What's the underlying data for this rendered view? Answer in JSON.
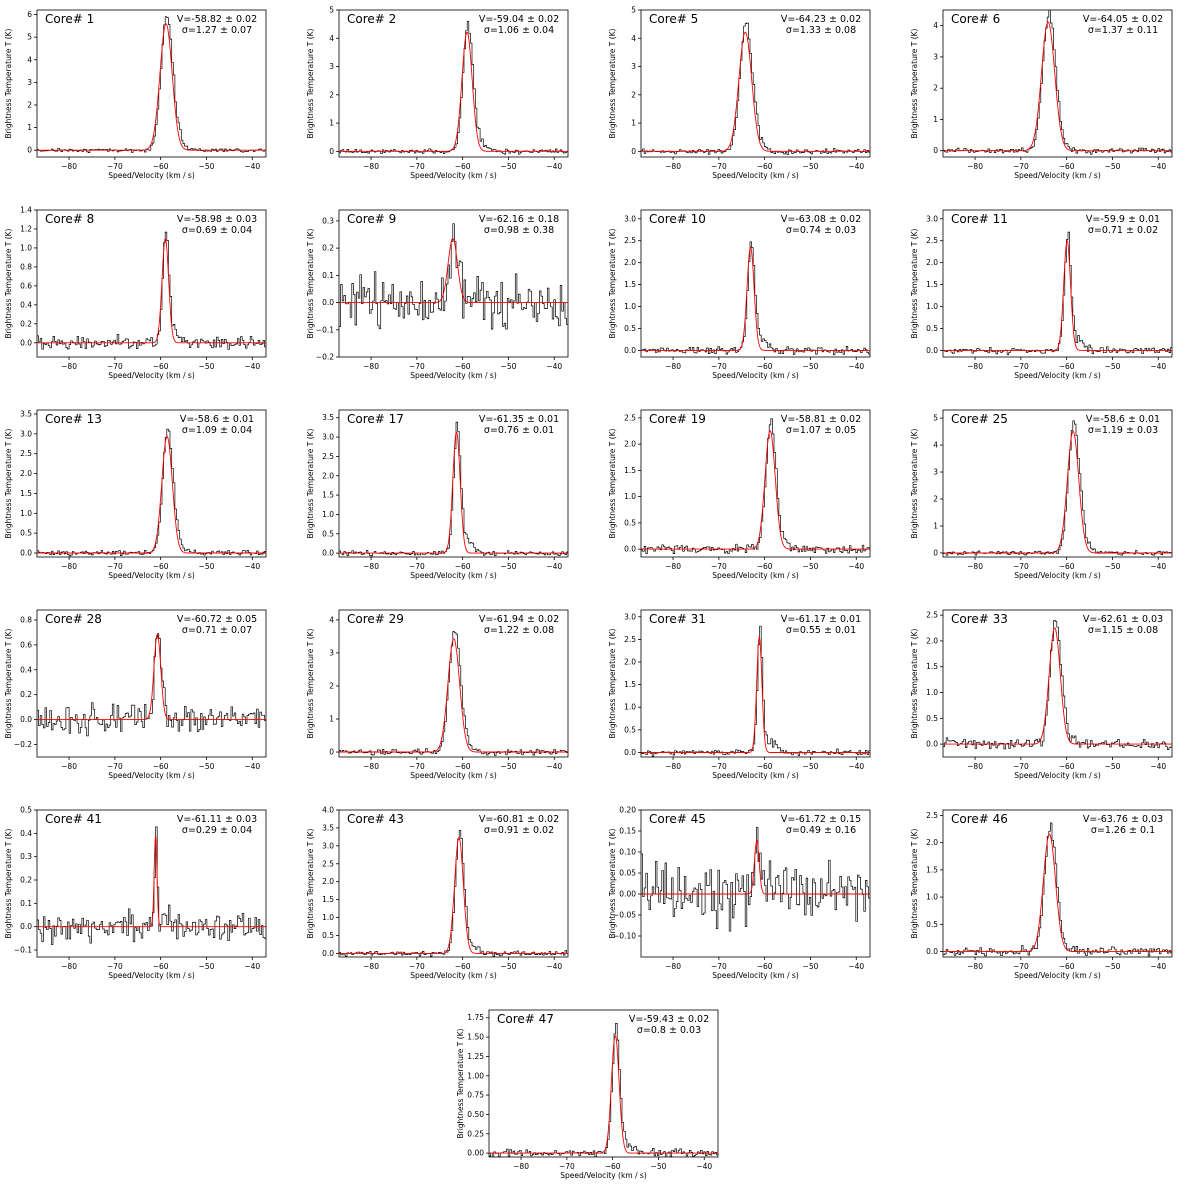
{
  "common": {
    "xlabel": "Speed/Velocity (km / s)",
    "ylabel": "Brightness Temperature T (K)",
    "xlim": [
      -87,
      -37
    ],
    "xticks": [
      -80,
      -70,
      -60,
      -50,
      -40
    ],
    "colors": {
      "data": "#000000",
      "fit": "#ff0000",
      "frame": "#000000"
    }
  },
  "chart_data": [
    {
      "type": "line",
      "title": "Core# 1",
      "v_label": "V=-58.82 ± 0.02",
      "sigma_label": "σ=1.27 ± 0.07",
      "ylim": [
        -0.3,
        6.2
      ],
      "yticks": [
        0,
        1,
        2,
        3,
        4,
        5,
        6
      ],
      "yticklabels": [
        "0",
        "1",
        "2",
        "3",
        "4",
        "5",
        "6"
      ],
      "peak": 5.7,
      "center": -58.82,
      "sigma": 1.27,
      "noise": 0.05,
      "series": [
        {
          "style": "steps",
          "color": "#000000"
        },
        {
          "style": "line",
          "color": "#ff0000"
        }
      ]
    },
    {
      "type": "line",
      "title": "Core# 2",
      "v_label": "V=-59.04 ± 0.02",
      "sigma_label": "σ=1.06 ± 0.04",
      "ylim": [
        -0.2,
        5
      ],
      "yticks": [
        0,
        1,
        2,
        3,
        4,
        5
      ],
      "yticklabels": [
        "0",
        "1",
        "2",
        "3",
        "4",
        "5"
      ],
      "peak": 4.3,
      "center": -59.04,
      "sigma": 1.06,
      "noise": 0.05,
      "series": [
        {
          "style": "steps",
          "color": "#000000"
        },
        {
          "style": "line",
          "color": "#ff0000"
        }
      ]
    },
    {
      "type": "line",
      "title": "Core# 5",
      "v_label": "V=-64.23 ± 0.02",
      "sigma_label": "σ=1.33 ± 0.08",
      "ylim": [
        -0.2,
        5
      ],
      "yticks": [
        0,
        1,
        2,
        3,
        4,
        5
      ],
      "yticklabels": [
        "0",
        "1",
        "2",
        "3",
        "4",
        "5"
      ],
      "peak": 4.3,
      "center": -64.23,
      "sigma": 1.33,
      "noise": 0.05,
      "series": [
        {
          "style": "steps",
          "color": "#000000"
        },
        {
          "style": "line",
          "color": "#ff0000"
        }
      ]
    },
    {
      "type": "line",
      "title": "Core# 6",
      "v_label": "V=-64.05 ± 0.02",
      "sigma_label": "σ=1.37 ± 0.11",
      "ylim": [
        -0.2,
        4.5
      ],
      "yticks": [
        0,
        1,
        2,
        3,
        4
      ],
      "yticklabels": [
        "0",
        "1",
        "2",
        "3",
        "4"
      ],
      "peak": 4.2,
      "center": -64.05,
      "sigma": 1.37,
      "noise": 0.05,
      "series": [
        {
          "style": "steps",
          "color": "#000000"
        },
        {
          "style": "line",
          "color": "#ff0000"
        }
      ]
    },
    {
      "type": "line",
      "title": "Core# 8",
      "v_label": "V=-58.98 ± 0.03",
      "sigma_label": "σ=0.69 ± 0.04",
      "ylim": [
        -0.15,
        1.4
      ],
      "yticks": [
        0,
        0.2,
        0.4,
        0.6,
        0.8,
        1.0,
        1.2,
        1.4
      ],
      "yticklabels": [
        "0.0",
        "0.2",
        "0.4",
        "0.6",
        "0.8",
        "1.0",
        "1.2",
        "1.4"
      ],
      "peak": 1.12,
      "center": -58.98,
      "sigma": 0.69,
      "noise": 0.04,
      "series": [
        {
          "style": "steps",
          "color": "#000000"
        },
        {
          "style": "line",
          "color": "#ff0000"
        }
      ]
    },
    {
      "type": "line",
      "title": "Core# 9",
      "v_label": "V=-62.16 ± 0.18",
      "sigma_label": "σ=0.98 ± 0.38",
      "ylim": [
        -0.2,
        0.34
      ],
      "yticks": [
        -0.2,
        -0.1,
        0,
        0.1,
        0.2,
        0.3
      ],
      "yticklabels": [
        "−0.2",
        "−0.1",
        "0.0",
        "0.1",
        "0.2",
        "0.3"
      ],
      "peak": 0.24,
      "center": -62.16,
      "sigma": 0.98,
      "noise": 0.06,
      "series": [
        {
          "style": "steps",
          "color": "#000000"
        },
        {
          "style": "line",
          "color": "#ff0000"
        }
      ]
    },
    {
      "type": "line",
      "title": "Core# 10",
      "v_label": "V=-63.08 ± 0.02",
      "sigma_label": "σ=0.74 ± 0.03",
      "ylim": [
        -0.15,
        3.2
      ],
      "yticks": [
        0,
        0.5,
        1,
        1.5,
        2,
        2.5,
        3
      ],
      "yticklabels": [
        "0.0",
        "0.5",
        "1.0",
        "1.5",
        "2.0",
        "2.5",
        "3.0"
      ],
      "peak": 2.4,
      "center": -63.08,
      "sigma": 0.74,
      "noise": 0.05,
      "series": [
        {
          "style": "steps",
          "color": "#000000"
        },
        {
          "style": "line",
          "color": "#ff0000"
        }
      ]
    },
    {
      "type": "line",
      "title": "Core# 11",
      "v_label": "V=-59.9 ± 0.01",
      "sigma_label": "σ=0.71 ± 0.02",
      "ylim": [
        -0.15,
        3.2
      ],
      "yticks": [
        0,
        0.5,
        1,
        1.5,
        2,
        2.5,
        3
      ],
      "yticklabels": [
        "0.0",
        "0.5",
        "1.0",
        "1.5",
        "2.0",
        "2.5",
        "3.0"
      ],
      "peak": 2.55,
      "center": -59.9,
      "sigma": 0.71,
      "noise": 0.05,
      "series": [
        {
          "style": "steps",
          "color": "#000000"
        },
        {
          "style": "line",
          "color": "#ff0000"
        }
      ]
    },
    {
      "type": "line",
      "title": "Core# 13",
      "v_label": "V=-58.6 ± 0.01",
      "sigma_label": "σ=1.09 ± 0.04",
      "ylim": [
        -0.1,
        3.6
      ],
      "yticks": [
        0,
        0.5,
        1,
        1.5,
        2,
        2.5,
        3,
        3.5
      ],
      "yticklabels": [
        "0.0",
        "0.5",
        "1.0",
        "1.5",
        "2.0",
        "2.5",
        "3.0",
        "3.5"
      ],
      "peak": 3.0,
      "center": -58.6,
      "sigma": 1.09,
      "noise": 0.04,
      "series": [
        {
          "style": "steps",
          "color": "#000000"
        },
        {
          "style": "line",
          "color": "#ff0000"
        }
      ]
    },
    {
      "type": "line",
      "title": "Core# 17",
      "v_label": "V=-61.35 ± 0.01",
      "sigma_label": "σ=0.76 ± 0.01",
      "ylim": [
        -0.1,
        3.7
      ],
      "yticks": [
        0,
        0.5,
        1,
        1.5,
        2,
        2.5,
        3,
        3.5
      ],
      "yticklabels": [
        "0.0",
        "0.5",
        "1.0",
        "1.5",
        "2.0",
        "2.5",
        "3.0",
        "3.5"
      ],
      "peak": 3.2,
      "center": -61.35,
      "sigma": 0.76,
      "noise": 0.04,
      "series": [
        {
          "style": "steps",
          "color": "#000000"
        },
        {
          "style": "line",
          "color": "#ff0000"
        }
      ]
    },
    {
      "type": "line",
      "title": "Core# 19",
      "v_label": "V=-58.81 ± 0.02",
      "sigma_label": "σ=1.07 ± 0.05",
      "ylim": [
        -0.15,
        2.65
      ],
      "yticks": [
        0,
        0.5,
        1,
        1.5,
        2,
        2.5
      ],
      "yticklabels": [
        "0.0",
        "0.5",
        "1.0",
        "1.5",
        "2.0",
        "2.5"
      ],
      "peak": 2.3,
      "center": -58.81,
      "sigma": 1.07,
      "noise": 0.05,
      "series": [
        {
          "style": "steps",
          "color": "#000000"
        },
        {
          "style": "line",
          "color": "#ff0000"
        }
      ]
    },
    {
      "type": "line",
      "title": "Core# 25",
      "v_label": "V=-58.6 ± 0.01",
      "sigma_label": "σ=1.19 ± 0.03",
      "ylim": [
        -0.15,
        5.3
      ],
      "yticks": [
        0,
        1,
        2,
        3,
        4,
        5
      ],
      "yticklabels": [
        "0",
        "1",
        "2",
        "3",
        "4",
        "5"
      ],
      "peak": 4.6,
      "center": -58.6,
      "sigma": 1.19,
      "noise": 0.05,
      "series": [
        {
          "style": "steps",
          "color": "#000000"
        },
        {
          "style": "line",
          "color": "#ff0000"
        }
      ]
    },
    {
      "type": "line",
      "title": "Core# 28",
      "v_label": "V=-60.72 ± 0.05",
      "sigma_label": "σ=0.71 ± 0.07",
      "ylim": [
        -0.3,
        0.88
      ],
      "yticks": [
        -0.2,
        0,
        0.2,
        0.4,
        0.6,
        0.8
      ],
      "yticklabels": [
        "−0.2",
        "0.0",
        "0.2",
        "0.4",
        "0.6",
        "0.8"
      ],
      "peak": 0.7,
      "center": -60.72,
      "sigma": 0.71,
      "noise": 0.07,
      "series": [
        {
          "style": "steps",
          "color": "#000000"
        },
        {
          "style": "line",
          "color": "#ff0000"
        }
      ]
    },
    {
      "type": "line",
      "title": "Core# 29",
      "v_label": "V=-61.94 ± 0.02",
      "sigma_label": "σ=1.22 ± 0.08",
      "ylim": [
        -0.15,
        4.3
      ],
      "yticks": [
        0,
        1,
        2,
        3,
        4
      ],
      "yticklabels": [
        "0",
        "1",
        "2",
        "3",
        "4"
      ],
      "peak": 3.5,
      "center": -61.94,
      "sigma": 1.22,
      "noise": 0.05,
      "series": [
        {
          "style": "steps",
          "color": "#000000"
        },
        {
          "style": "line",
          "color": "#ff0000"
        }
      ]
    },
    {
      "type": "line",
      "title": "Core# 31",
      "v_label": "V=-61.17 ± 0.01",
      "sigma_label": "σ=0.55 ± 0.01",
      "ylim": [
        -0.1,
        3.15
      ],
      "yticks": [
        0,
        0.5,
        1,
        1.5,
        2,
        2.5,
        3
      ],
      "yticklabels": [
        "0.0",
        "0.5",
        "1.0",
        "1.5",
        "2.0",
        "2.5",
        "3.0"
      ],
      "peak": 2.6,
      "center": -61.17,
      "sigma": 0.55,
      "noise": 0.04,
      "series": [
        {
          "style": "steps",
          "color": "#000000"
        },
        {
          "style": "line",
          "color": "#ff0000"
        }
      ]
    },
    {
      "type": "line",
      "title": "Core# 33",
      "v_label": "V=-62.61 ± 0.03",
      "sigma_label": "σ=1.15 ± 0.08",
      "ylim": [
        -0.25,
        2.6
      ],
      "yticks": [
        0,
        0.5,
        1,
        1.5,
        2,
        2.5
      ],
      "yticklabels": [
        "0.0",
        "0.5",
        "1.0",
        "1.5",
        "2.0",
        "2.5"
      ],
      "peak": 2.3,
      "center": -62.61,
      "sigma": 1.15,
      "noise": 0.06,
      "series": [
        {
          "style": "steps",
          "color": "#000000"
        },
        {
          "style": "line",
          "color": "#ff0000"
        }
      ]
    },
    {
      "type": "line",
      "title": "Core# 41",
      "v_label": "V=-61.11 ± 0.03",
      "sigma_label": "σ=0.29 ± 0.04",
      "ylim": [
        -0.13,
        0.5
      ],
      "yticks": [
        -0.1,
        0,
        0.1,
        0.2,
        0.3,
        0.4,
        0.5
      ],
      "yticklabels": [
        "−0.1",
        "0.0",
        "0.1",
        "0.2",
        "0.3",
        "0.4",
        "0.5"
      ],
      "peak": 0.4,
      "center": -61.11,
      "sigma": 0.29,
      "noise": 0.04,
      "series": [
        {
          "style": "steps",
          "color": "#000000"
        },
        {
          "style": "line",
          "color": "#ff0000"
        }
      ]
    },
    {
      "type": "line",
      "title": "Core# 43",
      "v_label": "V=-60.81 ± 0.02",
      "sigma_label": "σ=0.91 ± 0.02",
      "ylim": [
        -0.1,
        4.0
      ],
      "yticks": [
        0,
        0.5,
        1,
        1.5,
        2,
        2.5,
        3,
        3.5,
        4
      ],
      "yticklabels": [
        "0.0",
        "0.5",
        "1.0",
        "1.5",
        "2.0",
        "2.5",
        "3.0",
        "3.5",
        "4.0"
      ],
      "peak": 3.3,
      "center": -60.81,
      "sigma": 0.91,
      "noise": 0.04,
      "series": [
        {
          "style": "steps",
          "color": "#000000"
        },
        {
          "style": "line",
          "color": "#ff0000"
        }
      ]
    },
    {
      "type": "line",
      "title": "Core# 45",
      "v_label": "V=-61.72 ± 0.15",
      "sigma_label": "σ=0.49 ± 0.16",
      "ylim": [
        -0.15,
        0.2
      ],
      "yticks": [
        -0.1,
        -0.05,
        0,
        0.05,
        0.1,
        0.15,
        0.2
      ],
      "yticklabels": [
        "−0.10",
        "−0.05",
        "0.00",
        "0.05",
        "0.10",
        "0.15",
        "0.20"
      ],
      "peak": 0.13,
      "center": -61.72,
      "sigma": 0.49,
      "noise": 0.045,
      "series": [
        {
          "style": "steps",
          "color": "#000000"
        },
        {
          "style": "line",
          "color": "#ff0000"
        }
      ]
    },
    {
      "type": "line",
      "title": "Core# 46",
      "v_label": "V=-63.76 ± 0.03",
      "sigma_label": "σ=1.26 ± 0.1",
      "ylim": [
        -0.1,
        2.6
      ],
      "yticks": [
        0,
        0.5,
        1,
        1.5,
        2,
        2.5
      ],
      "yticklabels": [
        "0.0",
        "0.5",
        "1.0",
        "1.5",
        "2.0",
        "2.5"
      ],
      "peak": 2.2,
      "center": -63.76,
      "sigma": 1.26,
      "noise": 0.05,
      "series": [
        {
          "style": "steps",
          "color": "#000000"
        },
        {
          "style": "line",
          "color": "#ff0000"
        }
      ]
    },
    {
      "type": "line",
      "title": "Core# 47",
      "v_label": "V=-59.43 ± 0.02",
      "sigma_label": "σ=0.8 ± 0.03",
      "ylim": [
        -0.05,
        1.85
      ],
      "yticks": [
        0,
        0.25,
        0.5,
        0.75,
        1,
        1.25,
        1.5,
        1.75
      ],
      "yticklabels": [
        "0.00",
        "0.25",
        "0.50",
        "0.75",
        "1.00",
        "1.25",
        "1.50",
        "1.75"
      ],
      "peak": 1.55,
      "center": -59.43,
      "sigma": 0.8,
      "noise": 0.03,
      "series": [
        {
          "style": "steps",
          "color": "#000000"
        },
        {
          "style": "line",
          "color": "#ff0000"
        }
      ]
    }
  ]
}
